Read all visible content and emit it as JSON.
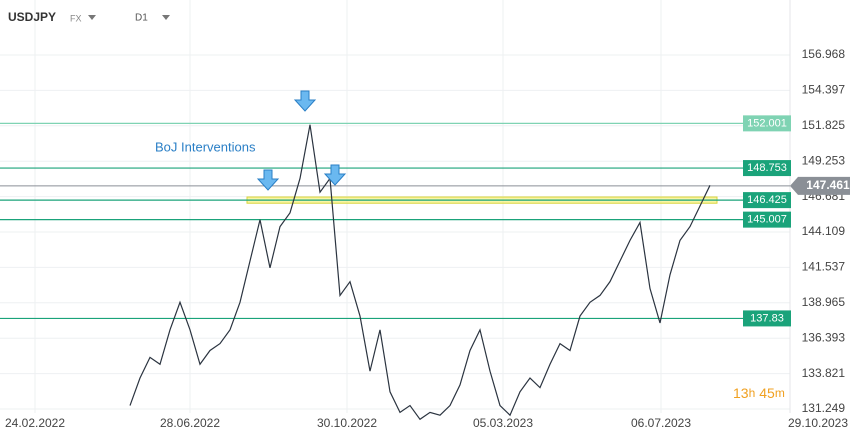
{
  "header": {
    "symbol": "USDJPY",
    "market": "FX",
    "timeframe": "D1"
  },
  "timer": {
    "hours": "13",
    "hours_unit": "h",
    "minutes": "45",
    "minutes_unit": "m"
  },
  "chart_data": {
    "type": "line",
    "annotation": "BoJ Interventions",
    "x": [
      13,
      14,
      15,
      16,
      17,
      18,
      19,
      20,
      21,
      22,
      23,
      24,
      25,
      26,
      27,
      28,
      29,
      30,
      31,
      32,
      33,
      34,
      35,
      36,
      37,
      38,
      39,
      40,
      41,
      42,
      43,
      44,
      45,
      46,
      47,
      48,
      49,
      50,
      51,
      52,
      53,
      54,
      55,
      56,
      57,
      58,
      59,
      60,
      61,
      62,
      63,
      64,
      65,
      66,
      67,
      68,
      69,
      70,
      71
    ],
    "series": [
      {
        "color": "#2b3440",
        "values": [
          131.5,
          133.5,
          135,
          134.5,
          137,
          139,
          137,
          134.5,
          135.5,
          136,
          137,
          139,
          142,
          145,
          141.5,
          144.5,
          145.5,
          148,
          151.9,
          147,
          148,
          139.5,
          140.5,
          138,
          134,
          137,
          132.5,
          131,
          131.5,
          130.5,
          131,
          130.8,
          131.5,
          133,
          135.5,
          137,
          134,
          131.5,
          130.8,
          132.5,
          133.5,
          132.8,
          134.5,
          136,
          135.5,
          138,
          139,
          139.5,
          140.5,
          142,
          143.5,
          144.8,
          140,
          137.5,
          141,
          143.5,
          144.5,
          146,
          147.5
        ]
      }
    ],
    "xlim": [
      0,
      85.9
    ],
    "xticks": [
      {
        "value": 3.5,
        "label": "24.02.2022"
      },
      {
        "value": 19,
        "label": "28.06.2022"
      },
      {
        "value": 34.7,
        "label": "30.10.2022"
      },
      {
        "value": 50.3,
        "label": "05.03.2023"
      },
      {
        "value": 66.1,
        "label": "06.07.2023"
      },
      {
        "value": 81.8,
        "label": "29.10.2023"
      }
    ],
    "ylim": [
      130.958,
      160.964
    ],
    "yticks": [
      156.968,
      154.397,
      151.825,
      149.253,
      146.681,
      144.109,
      141.537,
      138.965,
      136.393,
      133.821,
      131.249
    ],
    "levels": [
      {
        "value": 152.001,
        "color": "#7fd3b3"
      },
      {
        "value": 148.753,
        "color": "#1aa37a"
      },
      {
        "value": 146.425,
        "color": "#1aa37a"
      },
      {
        "value": 145.007,
        "color": "#1aa37a"
      },
      {
        "value": 137.83,
        "color": "#1aa37a"
      }
    ],
    "current_price": {
      "value": 147.461,
      "color": "#8a8f96"
    },
    "zone": {
      "low": 146.2,
      "high": 146.65,
      "color": "#f3f06a"
    },
    "grid": true
  }
}
